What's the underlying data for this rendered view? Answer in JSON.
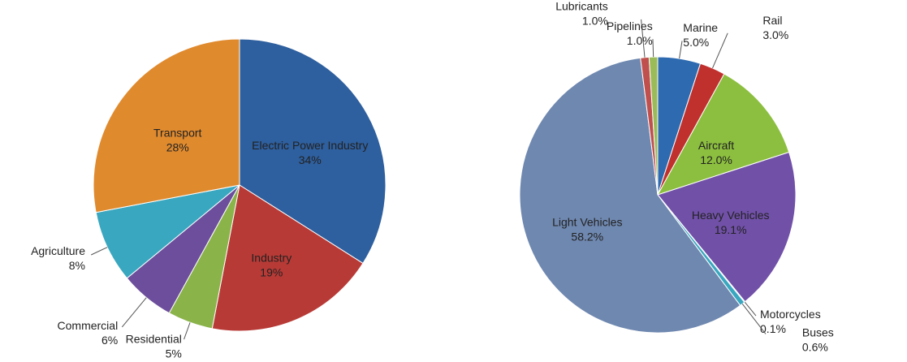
{
  "chart_data": [
    {
      "type": "pie",
      "categories": [
        "Electric Power Industry",
        "Industry",
        "Residential",
        "Commercial",
        "Agriculture",
        "Transport"
      ],
      "values": [
        34,
        19,
        5,
        6,
        8,
        28
      ],
      "value_labels": [
        "34%",
        "19%",
        "5%",
        "6%",
        "8%",
        "28%"
      ],
      "colors": [
        "#2e5f9e",
        "#b83a36",
        "#8ab34a",
        "#6d4e9c",
        "#3aa7c0",
        "#e08a2e"
      ]
    },
    {
      "type": "pie",
      "categories": [
        "Marine",
        "Rail",
        "Aircraft",
        "Heavy Vehicles",
        "Motorcycles",
        "Buses",
        "Light Vehicles",
        "Lubricants",
        "Pipelines"
      ],
      "values": [
        5.0,
        3.0,
        12.0,
        19.1,
        0.1,
        0.6,
        58.2,
        1.0,
        1.0
      ],
      "value_labels": [
        "5.0%",
        "3.0%",
        "12.0%",
        "19.1%",
        "0.1%",
        "0.6%",
        "58.2%",
        "1.0%",
        "1.0%"
      ],
      "colors": [
        "#2e6ab0",
        "#c0312e",
        "#8cbf3f",
        "#7150a8",
        "#e08a2e",
        "#3aa7c0",
        "#6f88b0",
        "#c0504d",
        "#9bbb59"
      ]
    }
  ]
}
